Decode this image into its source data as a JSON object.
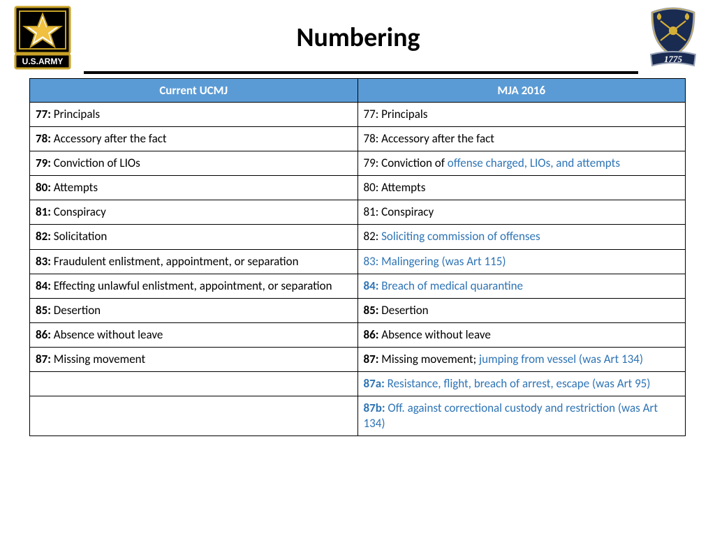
{
  "title": "Numbering",
  "header_left": "Current UCMJ",
  "header_right": "MJA 2016",
  "colors": {
    "header_bg": "#5b9bd5",
    "header_text": "#ffffff",
    "highlight": "#2e74b5",
    "border": "#000000",
    "text": "#000000"
  },
  "rows": [
    {
      "left": [
        {
          "t": "77:",
          "b": true
        },
        {
          "t": " Principals"
        }
      ],
      "right": [
        {
          "t": "77: Principals"
        }
      ]
    },
    {
      "left": [
        {
          "t": "78:",
          "b": true
        },
        {
          "t": " Accessory after the fact"
        }
      ],
      "right": [
        {
          "t": "78: Accessory after the fact"
        }
      ]
    },
    {
      "left": [
        {
          "t": "79:",
          "b": true
        },
        {
          "t": " Conviction of LIOs"
        }
      ],
      "right": [
        {
          "t": "79: Conviction of "
        },
        {
          "t": "offense charged, LIOs, and attempts",
          "hl": true
        }
      ]
    },
    {
      "left": [
        {
          "t": "80:",
          "b": true
        },
        {
          "t": " Attempts"
        }
      ],
      "right": [
        {
          "t": "80: Attempts"
        }
      ]
    },
    {
      "left": [
        {
          "t": "81:",
          "b": true
        },
        {
          "t": " Conspiracy"
        }
      ],
      "right": [
        {
          "t": "81: Conspiracy"
        }
      ]
    },
    {
      "left": [
        {
          "t": "82:",
          "b": true
        },
        {
          "t": " Solicitation"
        }
      ],
      "right": [
        {
          "t": "82: "
        },
        {
          "t": "Soliciting commission of offenses",
          "hl": true
        }
      ]
    },
    {
      "left": [
        {
          "t": "83:",
          "b": true
        },
        {
          "t": " Fraudulent enlistment, appointment, or separation"
        }
      ],
      "right": [
        {
          "t": "83: Malingering (was Art 115)",
          "hl": true
        }
      ]
    },
    {
      "left": [
        {
          "t": "84:",
          "b": true
        },
        {
          "t": " Effecting unlawful enlistment, appointment, or separation"
        }
      ],
      "right": [
        {
          "t": "84:",
          "b": true,
          "hl": true
        },
        {
          "t": " Breach of medical quarantine",
          "hl": true
        }
      ]
    },
    {
      "left": [
        {
          "t": "85:",
          "b": true
        },
        {
          "t": " Desertion"
        }
      ],
      "right": [
        {
          "t": "85:",
          "b": true
        },
        {
          "t": " Desertion"
        }
      ]
    },
    {
      "left": [
        {
          "t": "86:",
          "b": true
        },
        {
          "t": " Absence without leave"
        }
      ],
      "right": [
        {
          "t": "86:",
          "b": true
        },
        {
          "t": " Absence without leave"
        }
      ]
    },
    {
      "left": [
        {
          "t": "87:",
          "b": true
        },
        {
          "t": " Missing movement"
        }
      ],
      "right": [
        {
          "t": "87:",
          "b": true
        },
        {
          "t": " Missing movement; "
        },
        {
          "t": "jumping from vessel (was Art 134)",
          "hl": true
        }
      ]
    },
    {
      "left": [],
      "right": [
        {
          "t": "87a:",
          "b": true,
          "hl": true
        },
        {
          "t": " Resistance, flight, breach of arrest, escape (was Art 95)",
          "hl": true
        }
      ]
    },
    {
      "left": [],
      "right": [
        {
          "t": "87b:",
          "b": true,
          "hl": true
        },
        {
          "t": " Off. against correctional custody and restriction (was Art 134)",
          "hl": true
        }
      ]
    }
  ],
  "left_logo": {
    "label": "U.S.ARMY",
    "star_fill": "#f0c040",
    "bg": "#000000",
    "border": "#c9a227"
  },
  "right_logo": {
    "year": "1775",
    "shield_fill": "#1a2b52",
    "ribbon_fill": "#1a2b52"
  }
}
